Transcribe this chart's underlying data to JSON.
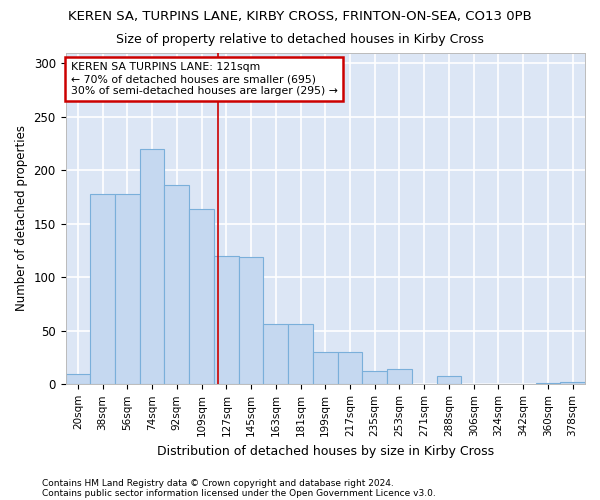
{
  "title_line1": "KEREN SA, TURPINS LANE, KIRBY CROSS, FRINTON-ON-SEA, CO13 0PB",
  "title_line2": "Size of property relative to detached houses in Kirby Cross",
  "xlabel": "Distribution of detached houses by size in Kirby Cross",
  "ylabel": "Number of detached properties",
  "footnote1": "Contains HM Land Registry data © Crown copyright and database right 2024.",
  "footnote2": "Contains public sector information licensed under the Open Government Licence v3.0.",
  "categories": [
    "20sqm",
    "38sqm",
    "56sqm",
    "74sqm",
    "92sqm",
    "109sqm",
    "127sqm",
    "145sqm",
    "163sqm",
    "181sqm",
    "199sqm",
    "217sqm",
    "235sqm",
    "253sqm",
    "271sqm",
    "288sqm",
    "306sqm",
    "324sqm",
    "342sqm",
    "360sqm",
    "378sqm"
  ],
  "values": [
    10,
    178,
    178,
    220,
    186,
    164,
    120,
    119,
    56,
    56,
    30,
    30,
    12,
    14,
    0,
    8,
    0,
    0,
    0,
    1,
    2
  ],
  "bar_color": "#c5d8f0",
  "bar_edge_color": "#7aafda",
  "annotation_text_line1": "KEREN SA TURPINS LANE: 121sqm",
  "annotation_text_line2": "← 70% of detached houses are smaller (695)",
  "annotation_text_line3": "30% of semi-detached houses are larger (295) →",
  "annotation_box_color": "#ffffff",
  "annotation_box_edge": "#cc0000",
  "vline_color": "#cc0000",
  "ylim": [
    0,
    310
  ],
  "plot_bg_color": "#dce6f5",
  "fig_bg_color": "#ffffff",
  "grid_color": "#ffffff",
  "yticks": [
    0,
    50,
    100,
    150,
    200,
    250,
    300
  ]
}
